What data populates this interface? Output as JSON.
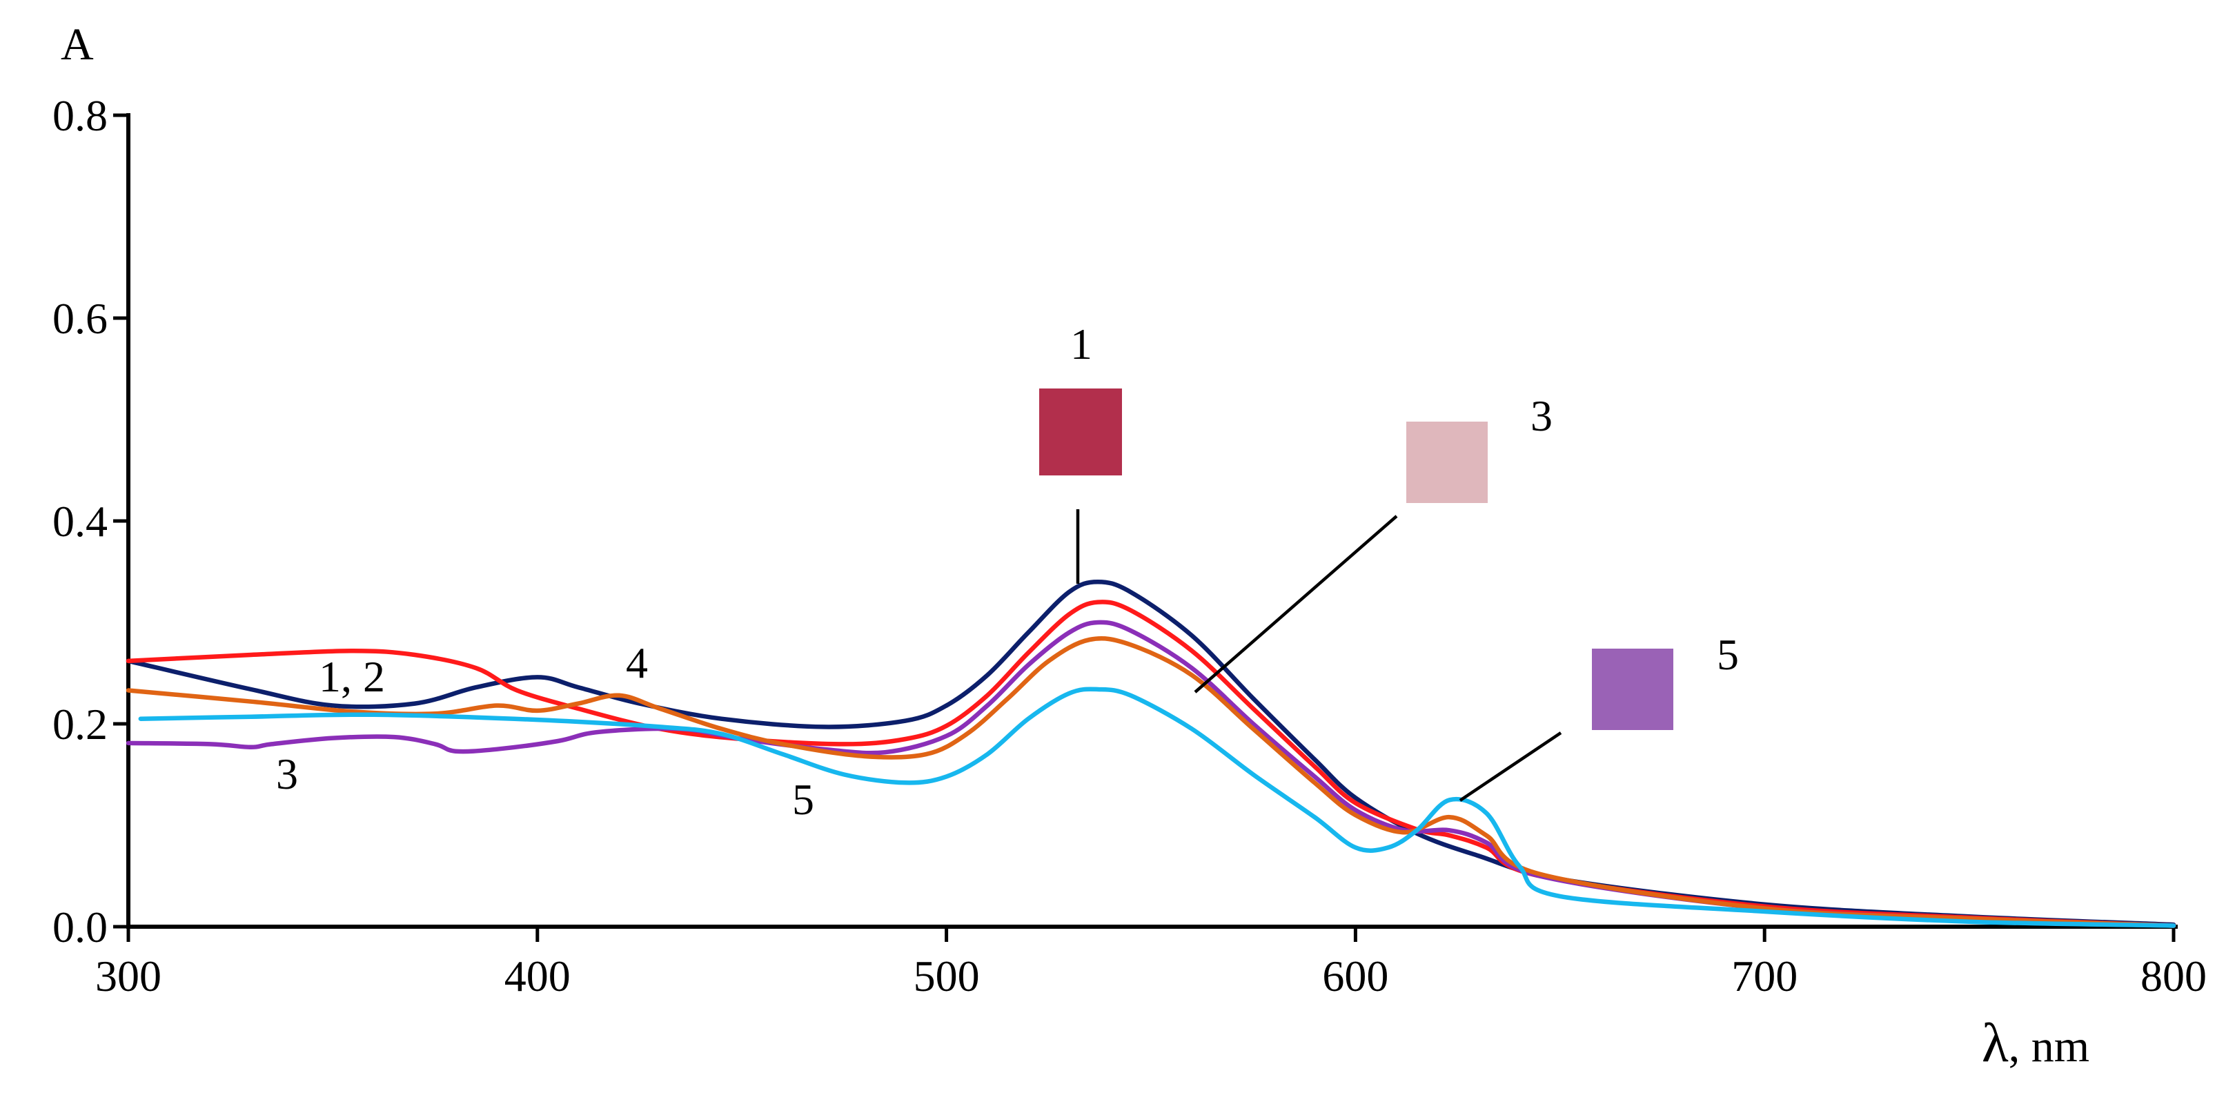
{
  "chart_data": {
    "type": "line",
    "ylabel": "A",
    "xlabel_symbol": "λ",
    "xlabel_unit": ", nm",
    "xlim": [
      300,
      800
    ],
    "ylim": [
      0,
      0.8
    ],
    "x_ticks": [
      300,
      400,
      500,
      600,
      700,
      800
    ],
    "y_ticks": [
      0.0,
      0.2,
      0.4,
      0.6,
      0.8
    ],
    "y_tick_labels": [
      "0.0",
      "0.2",
      "0.4",
      "0.6",
      "0.8"
    ],
    "grid": false,
    "series": [
      {
        "color": "#0c1f6b",
        "points": [
          [
            300,
            0.262
          ],
          [
            330,
            0.234
          ],
          [
            350,
            0.218
          ],
          [
            370,
            0.22
          ],
          [
            385,
            0.236
          ],
          [
            400,
            0.246
          ],
          [
            410,
            0.236
          ],
          [
            425,
            0.22
          ],
          [
            445,
            0.205
          ],
          [
            470,
            0.197
          ],
          [
            490,
            0.203
          ],
          [
            500,
            0.218
          ],
          [
            510,
            0.248
          ],
          [
            520,
            0.29
          ],
          [
            530,
            0.33
          ],
          [
            537,
            0.34
          ],
          [
            545,
            0.33
          ],
          [
            560,
            0.287
          ],
          [
            575,
            0.225
          ],
          [
            590,
            0.165
          ],
          [
            600,
            0.127
          ],
          [
            615,
            0.092
          ],
          [
            630,
            0.07
          ],
          [
            650,
            0.047
          ],
          [
            700,
            0.022
          ],
          [
            750,
            0.01
          ],
          [
            800,
            0.002
          ]
        ]
      },
      {
        "color": "#ff1a1a",
        "points": [
          [
            300,
            0.262
          ],
          [
            330,
            0.268
          ],
          [
            355,
            0.272
          ],
          [
            370,
            0.268
          ],
          [
            385,
            0.255
          ],
          [
            395,
            0.233
          ],
          [
            410,
            0.215
          ],
          [
            430,
            0.195
          ],
          [
            450,
            0.185
          ],
          [
            475,
            0.18
          ],
          [
            490,
            0.185
          ],
          [
            500,
            0.198
          ],
          [
            510,
            0.228
          ],
          [
            520,
            0.27
          ],
          [
            530,
            0.308
          ],
          [
            537,
            0.32
          ],
          [
            545,
            0.312
          ],
          [
            560,
            0.272
          ],
          [
            575,
            0.215
          ],
          [
            590,
            0.158
          ],
          [
            600,
            0.122
          ],
          [
            615,
            0.096
          ],
          [
            623,
            0.09
          ],
          [
            632,
            0.078
          ],
          [
            645,
            0.05
          ],
          [
            700,
            0.02
          ],
          [
            750,
            0.009
          ],
          [
            800,
            0.001
          ]
        ]
      },
      {
        "color": "#8b2fb8",
        "points": [
          [
            300,
            0.181
          ],
          [
            320,
            0.18
          ],
          [
            330,
            0.177
          ],
          [
            335,
            0.18
          ],
          [
            350,
            0.186
          ],
          [
            365,
            0.187
          ],
          [
            375,
            0.18
          ],
          [
            380,
            0.173
          ],
          [
            390,
            0.175
          ],
          [
            405,
            0.183
          ],
          [
            415,
            0.192
          ],
          [
            435,
            0.195
          ],
          [
            450,
            0.185
          ],
          [
            470,
            0.175
          ],
          [
            485,
            0.172
          ],
          [
            500,
            0.188
          ],
          [
            510,
            0.218
          ],
          [
            520,
            0.258
          ],
          [
            530,
            0.29
          ],
          [
            537,
            0.3
          ],
          [
            545,
            0.292
          ],
          [
            560,
            0.255
          ],
          [
            575,
            0.2
          ],
          [
            590,
            0.148
          ],
          [
            600,
            0.115
          ],
          [
            612,
            0.095
          ],
          [
            623,
            0.095
          ],
          [
            632,
            0.083
          ],
          [
            645,
            0.05
          ],
          [
            700,
            0.018
          ],
          [
            750,
            0.008
          ],
          [
            800,
            0.001
          ]
        ]
      },
      {
        "color": "#e06414",
        "points": [
          [
            300,
            0.233
          ],
          [
            330,
            0.222
          ],
          [
            355,
            0.212
          ],
          [
            375,
            0.21
          ],
          [
            390,
            0.218
          ],
          [
            400,
            0.213
          ],
          [
            410,
            0.22
          ],
          [
            420,
            0.228
          ],
          [
            430,
            0.215
          ],
          [
            445,
            0.195
          ],
          [
            460,
            0.18
          ],
          [
            480,
            0.168
          ],
          [
            495,
            0.17
          ],
          [
            505,
            0.19
          ],
          [
            515,
            0.225
          ],
          [
            525,
            0.262
          ],
          [
            535,
            0.283
          ],
          [
            545,
            0.278
          ],
          [
            560,
            0.248
          ],
          [
            575,
            0.195
          ],
          [
            590,
            0.142
          ],
          [
            600,
            0.11
          ],
          [
            612,
            0.093
          ],
          [
            623,
            0.108
          ],
          [
            632,
            0.09
          ],
          [
            645,
            0.052
          ],
          [
            700,
            0.018
          ],
          [
            750,
            0.008
          ],
          [
            800,
            0.001
          ]
        ]
      },
      {
        "color": "#17b7ee",
        "points": [
          [
            303,
            0.205
          ],
          [
            330,
            0.207
          ],
          [
            360,
            0.209
          ],
          [
            400,
            0.204
          ],
          [
            430,
            0.197
          ],
          [
            445,
            0.19
          ],
          [
            460,
            0.17
          ],
          [
            475,
            0.15
          ],
          [
            490,
            0.142
          ],
          [
            500,
            0.148
          ],
          [
            510,
            0.17
          ],
          [
            520,
            0.205
          ],
          [
            530,
            0.23
          ],
          [
            537,
            0.234
          ],
          [
            545,
            0.228
          ],
          [
            560,
            0.195
          ],
          [
            575,
            0.15
          ],
          [
            590,
            0.108
          ],
          [
            600,
            0.078
          ],
          [
            608,
            0.078
          ],
          [
            615,
            0.095
          ],
          [
            623,
            0.125
          ],
          [
            632,
            0.112
          ],
          [
            640,
            0.06
          ],
          [
            650,
            0.03
          ],
          [
            700,
            0.015
          ],
          [
            750,
            0.005
          ],
          [
            800,
            0.001
          ]
        ]
      }
    ],
    "curve_labels": [
      "1, 2",
      "3",
      "4",
      "5"
    ],
    "inset_labels": [
      "1",
      "3",
      "5"
    ]
  },
  "colors": {
    "swatch_1": "#b22f4c",
    "swatch_3": "#dfb7bc",
    "swatch_5": "#9a62b6"
  }
}
